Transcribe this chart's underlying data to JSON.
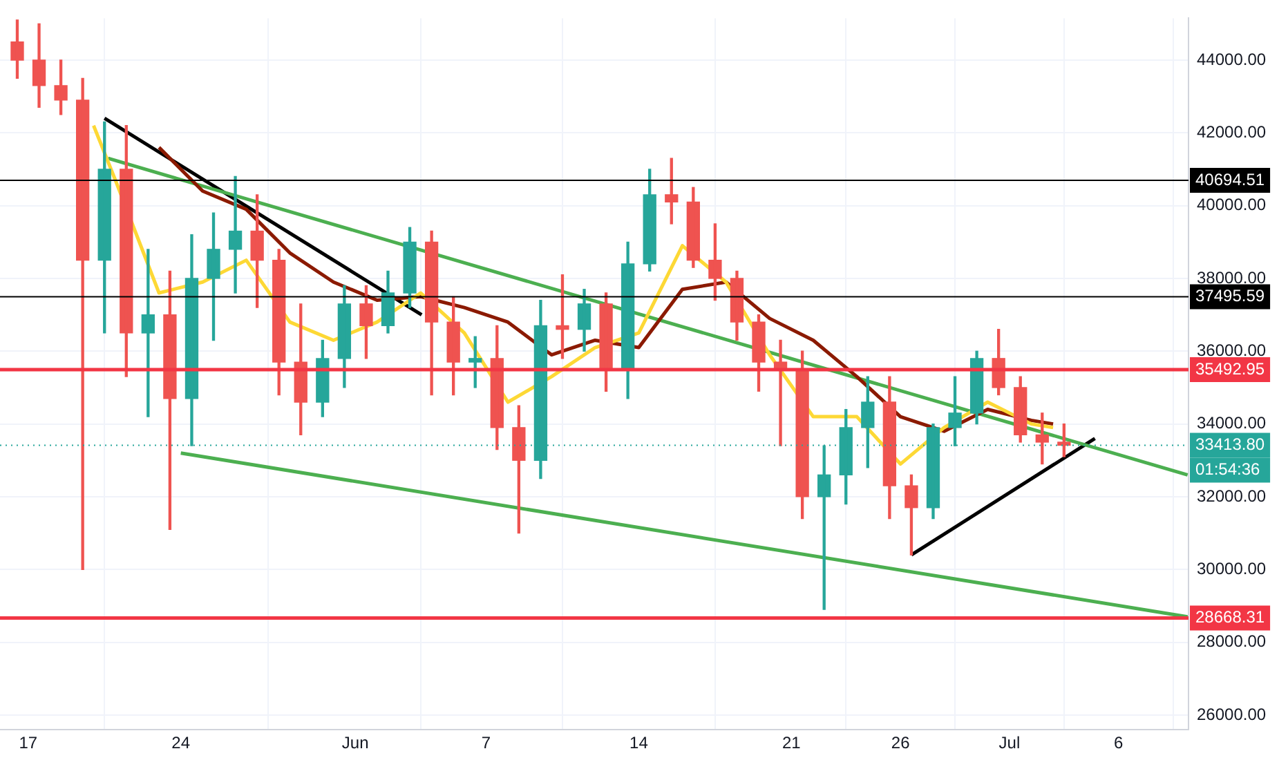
{
  "chart_data": {
    "type": "candlestick",
    "x": [
      "--05-16T12:00",
      "--05-17T12:00",
      "--05-18T12:00",
      "--05-19T12:00",
      "--05-20T12:00",
      "--05-21T12:00",
      "--05-22T12:00",
      "--05-23T12:00",
      "--05-24T12:00",
      "--05-25T12:00",
      "--05-26T12:00",
      "--05-27T12:00",
      "--05-28T12:00",
      "--05-29T12:00",
      "--05-30T12:00",
      "--05-31T12:00",
      "--06-01T12:00",
      "--06-02T12:00",
      "--06-03T12:00",
      "--06-04T12:00",
      "--06-05T12:00",
      "--06-06T12:00",
      "--06-07T12:00",
      "--06-08T12:00",
      "--06-09T12:00",
      "--06-10T12:00",
      "--06-11T12:00",
      "--06-12T12:00",
      "--06-13T12:00",
      "--06-14T12:00",
      "--06-15T12:00",
      "--06-16T12:00",
      "--06-17T12:00",
      "--06-18T12:00",
      "--06-19T12:00",
      "--06-20T12:00",
      "--06-21T12:00",
      "--06-22T12:00",
      "--06-23T12:00",
      "--06-24T12:00",
      "--06-25T12:00",
      "--06-26T12:00",
      "--06-27T12:00",
      "--06-28T12:00",
      "--06-29T12:00",
      "--06-30T12:00",
      "--07-01T12:00",
      "--07-02T12:00",
      "--07-03T12:00"
    ],
    "ohlc": [
      [
        44500,
        45100,
        43500,
        44000
      ],
      [
        44000,
        45000,
        42700,
        43300
      ],
      [
        43300,
        44000,
        42500,
        42900
      ],
      [
        42900,
        43500,
        30000,
        38500
      ],
      [
        38500,
        42300,
        36500,
        41000
      ],
      [
        41000,
        42200,
        35300,
        36500
      ],
      [
        36500,
        38800,
        34200,
        37000
      ],
      [
        37000,
        38200,
        31100,
        34700
      ],
      [
        34700,
        39200,
        33400,
        38000
      ],
      [
        38000,
        39800,
        36300,
        38800
      ],
      [
        38800,
        40800,
        37600,
        39300
      ],
      [
        39300,
        40300,
        37200,
        38500
      ],
      [
        38500,
        38800,
        34800,
        35700
      ],
      [
        35700,
        37300,
        33700,
        34600
      ],
      [
        34600,
        36300,
        34200,
        35800
      ],
      [
        35800,
        37800,
        35000,
        37300
      ],
      [
        37300,
        37800,
        35800,
        36700
      ],
      [
        36700,
        38200,
        36500,
        37600
      ],
      [
        37600,
        39400,
        37200,
        39000
      ],
      [
        39000,
        39300,
        34800,
        36800
      ],
      [
        36800,
        37500,
        34800,
        35700
      ],
      [
        35700,
        36400,
        35000,
        35800
      ],
      [
        35800,
        36700,
        33300,
        33900
      ],
      [
        33900,
        34500,
        31000,
        33000
      ],
      [
        33000,
        37400,
        32500,
        36700
      ],
      [
        36700,
        38100,
        35800,
        36600
      ],
      [
        36600,
        37700,
        36000,
        37300
      ],
      [
        37300,
        37600,
        34900,
        35500
      ],
      [
        35500,
        39000,
        34700,
        38400
      ],
      [
        38400,
        41000,
        38200,
        40300
      ],
      [
        40300,
        41300,
        39500,
        40100
      ],
      [
        40100,
        40500,
        38300,
        38500
      ],
      [
        38500,
        39500,
        37400,
        38000
      ],
      [
        38000,
        38200,
        36300,
        36800
      ],
      [
        36800,
        37000,
        34900,
        35700
      ],
      [
        35700,
        36300,
        33400,
        35500
      ],
      [
        35500,
        36000,
        31400,
        32000
      ],
      [
        32000,
        33400,
        28900,
        32600
      ],
      [
        32600,
        34400,
        31800,
        33900
      ],
      [
        33900,
        35300,
        32800,
        34600
      ],
      [
        34600,
        35300,
        31400,
        32300
      ],
      [
        32300,
        32600,
        30400,
        31700
      ],
      [
        31700,
        34000,
        31400,
        33900
      ],
      [
        33900,
        35300,
        33400,
        34300
      ],
      [
        34300,
        36000,
        34000,
        35800
      ],
      [
        35800,
        36600,
        34800,
        35000
      ],
      [
        35000,
        35300,
        33500,
        33700
      ],
      [
        33700,
        34300,
        32900,
        33500
      ],
      [
        33500,
        34000,
        33100,
        33413.8
      ]
    ],
    "colors": [
      "#ef5350",
      "#ef5350",
      "#ef5350",
      "#ef5350",
      "#26a69a",
      "#ef5350",
      "#26a69a",
      "#ef5350",
      "#26a69a",
      "#26a69a",
      "#26a69a",
      "#ef5350",
      "#ef5350",
      "#ef5350",
      "#26a69a",
      "#26a69a",
      "#ef5350",
      "#26a69a",
      "#26a69a",
      "#ef5350",
      "#ef5350",
      "#26a69a",
      "#ef5350",
      "#ef5350",
      "#26a69a",
      "#ef5350",
      "#26a69a",
      "#ef5350",
      "#26a69a",
      "#26a69a",
      "#ef5350",
      "#ef5350",
      "#ef5350",
      "#ef5350",
      "#ef5350",
      "#ef5350",
      "#ef5350",
      "#26a69a",
      "#26a69a",
      "#26a69a",
      "#ef5350",
      "#ef5350",
      "#26a69a",
      "#26a69a",
      "#26a69a",
      "#ef5350",
      "#ef5350",
      "#ef5350",
      "#ef5350"
    ],
    "series": [
      {
        "type": "line",
        "color": "#fdd835",
        "x": [
          "--05-20T00:00",
          "--05-21T00:00",
          "--05-23T00:00",
          "--05-25T00:00",
          "--05-27T00:00",
          "--05-29T00:00",
          "--05-31T00:00",
          "--06-02T00:00",
          "--06-04T00:00",
          "--06-06T00:00",
          "--06-08T00:00",
          "--06-10T00:00",
          "--06-12T00:00",
          "--06-14T00:00",
          "--06-16T00:00",
          "--06-18T00:00",
          "--06-20T00:00",
          "--06-22T00:00",
          "--06-24T00:00",
          "--06-26T00:00",
          "--06-28T00:00",
          "--06-30T00:00",
          "--07-02T00:00",
          "--07-03T00:00"
        ],
        "values": [
          42200,
          40700,
          37600,
          37900,
          38500,
          36800,
          36300,
          36800,
          37600,
          36500,
          34600,
          35300,
          36100,
          36500,
          38900,
          37900,
          35900,
          34200,
          34200,
          32900,
          33900,
          34600,
          34000,
          33900
        ]
      },
      {
        "type": "line",
        "color": "#8b1a00",
        "x": [
          "--05-23T00:00",
          "--05-25T00:00",
          "--05-27T00:00",
          "--05-29T00:00",
          "--05-31T00:00",
          "--06-02T00:00",
          "--06-04T00:00",
          "--06-06T00:00",
          "--06-08T00:00",
          "--06-10T00:00",
          "--06-12T00:00",
          "--06-14T00:00",
          "--06-16T00:00",
          "--06-18T00:00",
          "--06-20T00:00",
          "--06-22T00:00",
          "--06-24T00:00",
          "--06-26T00:00",
          "--06-28T00:00",
          "--06-30T00:00",
          "--07-02T00:00",
          "--07-03T00:00"
        ],
        "values": [
          41600,
          40400,
          39900,
          38700,
          37900,
          37400,
          37500,
          37200,
          36800,
          35900,
          36300,
          36100,
          37700,
          37900,
          36900,
          36300,
          35300,
          34200,
          33800,
          34400,
          34100,
          34000
        ]
      },
      {
        "type": "line",
        "color": "#4caf50",
        "x": [
          "--05-20T16:00",
          "--07-09T04:00"
        ],
        "values": [
          41300,
          32600
        ]
      },
      {
        "type": "line",
        "color": "#4caf50",
        "x": [
          "--05-24T00:00",
          "--07-09T04:00"
        ],
        "values": [
          33200,
          28700
        ]
      },
      {
        "type": "line",
        "color": "#000000",
        "x": [
          "--06-26T12:00",
          "--07-04T22:00"
        ],
        "values": [
          30400,
          33600
        ]
      },
      {
        "type": "line",
        "color": "#000000",
        "x": [
          "--05-20T12:00",
          "--06-04T01:00"
        ],
        "values": [
          42400,
          37000
        ]
      }
    ],
    "xlim": [
      "--05-15T17:00",
      "--07-09T05:00"
    ],
    "xticks": [
      {
        "value": "--05-17",
        "label": "17"
      },
      {
        "value": "--05-24",
        "label": "24"
      },
      {
        "value": "--06-01",
        "label": "Jun"
      },
      {
        "value": "--06-07",
        "label": "7"
      },
      {
        "value": "--06-14",
        "label": "14"
      },
      {
        "value": "--06-21",
        "label": "21"
      },
      {
        "value": "--06-26",
        "label": "26"
      },
      {
        "value": "--07-01",
        "label": "Jul"
      },
      {
        "value": "--07-06",
        "label": "6"
      }
    ],
    "ylim": [
      25600,
      45150
    ],
    "yticks": [
      {
        "value": 26000,
        "label": "26000.00"
      },
      {
        "value": 28000,
        "label": "28000.00"
      },
      {
        "value": 30000,
        "label": "30000.00"
      },
      {
        "value": 32000,
        "label": "32000.00"
      },
      {
        "value": 34000,
        "label": "34000.00"
      },
      {
        "value": 36000,
        "label": "36000.00"
      },
      {
        "value": 38000,
        "label": "38000.00"
      },
      {
        "value": 40000,
        "label": "40000.00"
      },
      {
        "value": 42000,
        "label": "42000.00"
      },
      {
        "value": 44000,
        "label": "44000.00"
      }
    ],
    "ref_lines": [
      {
        "axis": "y",
        "value": 40694.51,
        "label": "40694.51",
        "color": "#000000"
      },
      {
        "axis": "y",
        "value": 37495.59,
        "label": "37495.59",
        "color": "#000000"
      },
      {
        "axis": "y",
        "value": 35492.95,
        "label": "35492.95",
        "color": "#f23645"
      },
      {
        "axis": "y",
        "value": 33413.8,
        "label": "33413.80",
        "color": "#26a69a",
        "line_style": "dotted"
      },
      {
        "axis": "y",
        "value": 28668.31,
        "label": "28668.31",
        "color": "#f23645"
      }
    ],
    "annotations": [
      "01:54:36"
    ],
    "grid": true,
    "legend": false,
    "marker": "none",
    "line_style": "solid"
  }
}
